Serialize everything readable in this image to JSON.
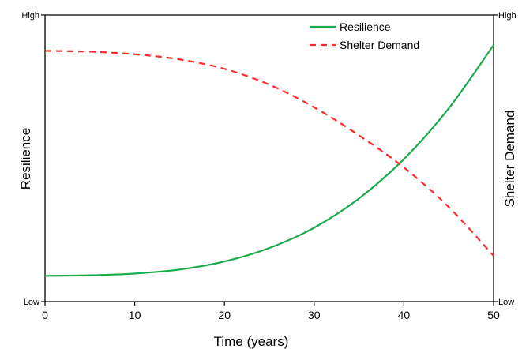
{
  "chart_data": {
    "type": "line",
    "xlabel": "Time (years)",
    "ylabel_left": "Resilience",
    "ylabel_right": "Shelter Demand",
    "xlim": [
      0,
      50
    ],
    "ylim": [
      0,
      1
    ],
    "x_ticks": [
      0,
      10,
      20,
      30,
      40,
      50
    ],
    "y_left_ticks": [
      "Low",
      "High"
    ],
    "y_right_ticks": [
      "Low",
      "High"
    ],
    "grid": false,
    "legend_position": "top-right",
    "series": [
      {
        "name": "Resilience",
        "color": "#1aaa4a",
        "style": "solid",
        "x": [
          0,
          5,
          10,
          15,
          20,
          25,
          30,
          35,
          40,
          45,
          50
        ],
        "y": [
          0.09,
          0.092,
          0.098,
          0.112,
          0.14,
          0.187,
          0.258,
          0.36,
          0.497,
          0.674,
          0.895
        ]
      },
      {
        "name": "Shelter Demand",
        "color": "#ff2a2a",
        "style": "dashed",
        "x": [
          0,
          5,
          10,
          15,
          20,
          25,
          30,
          35,
          40,
          45,
          50
        ],
        "y": [
          0.875,
          0.872,
          0.863,
          0.845,
          0.812,
          0.757,
          0.678,
          0.58,
          0.468,
          0.33,
          0.16
        ]
      }
    ]
  }
}
